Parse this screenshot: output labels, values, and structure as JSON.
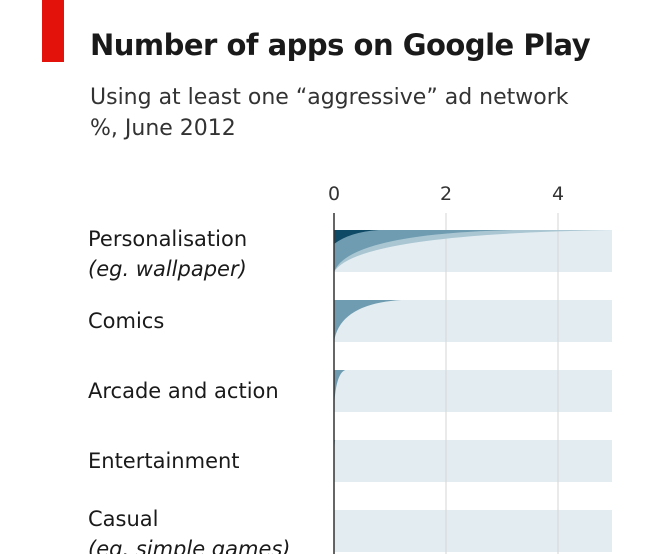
{
  "chart_data": {
    "type": "bar",
    "title": "Number of apps on Google Play",
    "subtitle_lines": [
      "Using at least one “aggressive” ad network",
      "%, June 2012"
    ],
    "x_ticks": [
      0,
      2,
      4
    ],
    "xlim": [
      0,
      5
    ],
    "categories": [
      {
        "label": "Personalisation",
        "sublabel": "(eg. wallpaper)"
      },
      {
        "label": "Comics",
        "sublabel": ""
      },
      {
        "label": "Arcade and action",
        "sublabel": ""
      },
      {
        "label": "Entertainment",
        "sublabel": ""
      },
      {
        "label": "Casual",
        "sublabel": "(eg. simple games)"
      }
    ],
    "series": [
      {
        "values": [
          0.8,
          null,
          null,
          null,
          null
        ],
        "color": "#0e4a66"
      },
      {
        "values": [
          3.2,
          1.2,
          0.2,
          0.02,
          null
        ],
        "color": "#6f9cb0"
      },
      {
        "values": [
          5,
          0.75,
          0.1,
          null,
          null
        ],
        "color": "#a9c6d2"
      },
      {
        "values": [
          5,
          5,
          5,
          5,
          5
        ],
        "color": "#e2ecf1"
      }
    ],
    "grid": true,
    "colors": {
      "accent_red": "#e3120b",
      "background_bar": "#e2ecf1",
      "gridline": "#d6d6d6",
      "axis": "#333333"
    }
  }
}
